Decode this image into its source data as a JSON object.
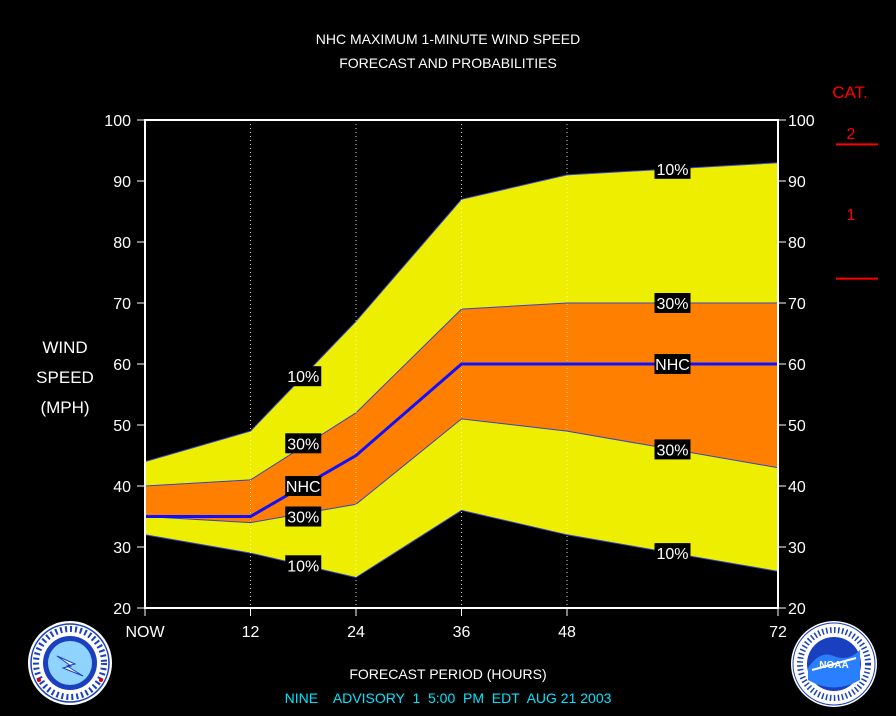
{
  "title_line1": "NHC MAXIMUM 1-MINUTE WIND SPEED",
  "title_line2": "FORECAST AND PROBABILITIES",
  "ylabel_lines": [
    "WIND",
    "SPEED",
    "(MPH)"
  ],
  "xlabel": "FORECAST PERIOD (HOURS)",
  "advisory": "NINE    ADVISORY  1  5:00  PM  EDT  AUG 21 2003",
  "category_header": "CAT.",
  "colors": {
    "background": "#000000",
    "plot_border": "#ffffff",
    "band_10": "#eeee00",
    "band_30": "#ff8000",
    "nhc_line": "#1010ff",
    "label_box": "#000000",
    "category": "#ff0000",
    "footer_text": "#00e5ff"
  },
  "chart_data": {
    "type": "area",
    "x_ticks": [
      0,
      12,
      24,
      36,
      48,
      72
    ],
    "x_tick_labels": [
      "NOW",
      "12",
      "24",
      "36",
      "48",
      "72"
    ],
    "xlim": [
      0,
      72
    ],
    "ylim": [
      20,
      100
    ],
    "y_ticks": [
      20,
      30,
      40,
      50,
      60,
      70,
      80,
      90,
      100
    ],
    "grid": "dotted vertical at 12, 24, 36, 48",
    "series": [
      {
        "name": "10%",
        "role": "upper_10",
        "x": [
          0,
          12,
          24,
          36,
          48,
          72
        ],
        "values": [
          44,
          49,
          67,
          87,
          91,
          93
        ]
      },
      {
        "name": "30%",
        "role": "upper_30",
        "x": [
          0,
          12,
          24,
          36,
          48,
          72
        ],
        "values": [
          40,
          41,
          52,
          69,
          70,
          70
        ]
      },
      {
        "name": "NHC",
        "role": "nhc",
        "x": [
          0,
          12,
          24,
          36,
          48,
          72
        ],
        "values": [
          35,
          35,
          45,
          60,
          60,
          60
        ]
      },
      {
        "name": "30%",
        "role": "lower_30",
        "x": [
          0,
          12,
          24,
          36,
          48,
          72
        ],
        "values": [
          35,
          34,
          37,
          51,
          49,
          43
        ]
      },
      {
        "name": "10%",
        "role": "lower_10",
        "x": [
          0,
          12,
          24,
          36,
          48,
          72
        ],
        "values": [
          32,
          29,
          25,
          36,
          32,
          26
        ]
      }
    ],
    "annotations": [
      {
        "text": "10%",
        "x": 18,
        "y": 58
      },
      {
        "text": "30%",
        "x": 18,
        "y": 47
      },
      {
        "text": "NHC",
        "x": 18,
        "y": 40
      },
      {
        "text": "30%",
        "x": 18,
        "y": 35
      },
      {
        "text": "10%",
        "x": 18,
        "y": 27
      },
      {
        "text": "10%",
        "x": 60,
        "y": 92
      },
      {
        "text": "30%",
        "x": 60,
        "y": 70
      },
      {
        "text": "NHC",
        "x": 60,
        "y": 60
      },
      {
        "text": "30%",
        "x": 60,
        "y": 46
      },
      {
        "text": "10%",
        "x": 60,
        "y": 29
      }
    ],
    "categories_scale": [
      {
        "label": "2",
        "threshold": 96
      },
      {
        "label": "1",
        "threshold": 74
      }
    ]
  },
  "logos": {
    "left": "nws-logo",
    "right": "noaa-logo",
    "noaa_text": "NOAA"
  }
}
